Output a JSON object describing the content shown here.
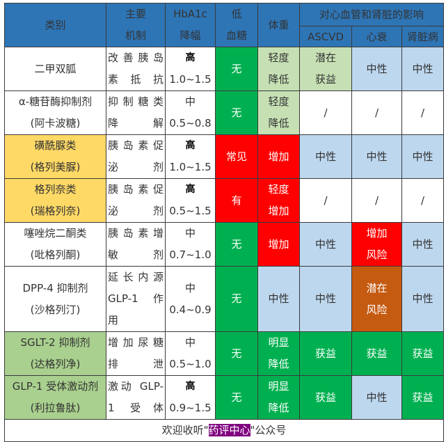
{
  "header": {
    "category": "类别",
    "mechanism": [
      "主要",
      "机制"
    ],
    "hba1c": [
      "HbA1c",
      "降幅"
    ],
    "hypoglycemia": [
      "低",
      "血糖"
    ],
    "weight": "体重",
    "cv_renal_group": "对心血管和肾脏的影响",
    "ascvd": "ASCVD",
    "heart_failure": "心衰",
    "kidney": "肾脏病"
  },
  "rows": [
    {
      "category": [
        "二甲双胍"
      ],
      "category_color": "#ffffff",
      "mechanism": [
        "改善胰岛",
        "素抵抗"
      ],
      "hba1c_level": "高",
      "hba1c_range": "1.0~1.5",
      "hypo": {
        "text": [
          "无"
        ],
        "color": "#00b050"
      },
      "weight": {
        "text": [
          "轻度",
          "降低"
        ],
        "color": "#c6e0b4"
      },
      "ascvd": {
        "text": [
          "潜在",
          "获益"
        ],
        "color": "#c6e0b4"
      },
      "hf": {
        "text": [
          "中性"
        ],
        "color": "#bdd7ee"
      },
      "kidney": {
        "text": [
          "中性"
        ],
        "color": "#bdd7ee"
      }
    },
    {
      "category": [
        "α-糖苷酶抑制剂",
        "(阿卡波糖)"
      ],
      "category_color": "#ffffff",
      "mechanism": [
        "抑制糖类",
        "降解"
      ],
      "hba1c_level": "中",
      "hba1c_range": "0.5~0.8",
      "hypo": {
        "text": [
          "无"
        ],
        "color": "#00b050"
      },
      "weight": {
        "text": [
          "轻度",
          "降低"
        ],
        "color": "#c6e0b4"
      },
      "ascvd": {
        "text": [
          "/"
        ],
        "color": "#ffffff"
      },
      "hf": {
        "text": [
          "/"
        ],
        "color": "#ffffff"
      },
      "kidney": {
        "text": [
          "/"
        ],
        "color": "#ffffff"
      }
    },
    {
      "category": [
        "磺酰脲类",
        "(格列美脲)"
      ],
      "category_color": "#ffd966",
      "mechanism": [
        "胰岛素促",
        "泌剂"
      ],
      "hba1c_level": "高",
      "hba1c_range": "1.0~1.5",
      "hypo": {
        "text": [
          "常见"
        ],
        "color": "#ff0000"
      },
      "weight": {
        "text": [
          "增加"
        ],
        "color": "#ff0000"
      },
      "ascvd": {
        "text": [
          "中性"
        ],
        "color": "#bdd7ee"
      },
      "hf": {
        "text": [
          "中性"
        ],
        "color": "#bdd7ee"
      },
      "kidney": {
        "text": [
          "中性"
        ],
        "color": "#bdd7ee"
      }
    },
    {
      "category": [
        "格列奈类",
        "(瑞格列奈)"
      ],
      "category_color": "#ffd966",
      "mechanism": [
        "胰岛素促",
        "泌剂"
      ],
      "hba1c_level": "高",
      "hba1c_range": "0.5~1.5",
      "hypo": {
        "text": [
          "有"
        ],
        "color": "#ff0000"
      },
      "weight": {
        "text": [
          "轻度",
          "增加"
        ],
        "color": "#ff0000"
      },
      "ascvd": {
        "text": [
          "/"
        ],
        "color": "#ffffff"
      },
      "hf": {
        "text": [
          "/"
        ],
        "color": "#ffffff"
      },
      "kidney": {
        "text": [
          "/"
        ],
        "color": "#ffffff"
      }
    },
    {
      "category": [
        "噻唑烷二酮类",
        "(吡格列酮)"
      ],
      "category_color": "#ffffff",
      "mechanism": [
        "胰岛素增",
        "敏剂"
      ],
      "hba1c_level": "中",
      "hba1c_range": "0.7~1.0",
      "hypo": {
        "text": [
          "无"
        ],
        "color": "#00b050"
      },
      "weight": {
        "text": [
          "增加"
        ],
        "color": "#ff0000"
      },
      "ascvd": {
        "text": [
          "中性"
        ],
        "color": "#bdd7ee"
      },
      "hf": {
        "text": [
          "增加",
          "风险"
        ],
        "color": "#ff0000"
      },
      "kidney": {
        "text": [
          "中性"
        ],
        "color": "#bdd7ee"
      }
    },
    {
      "category": [
        "DPP-4 抑制剂",
        "(沙格列汀)"
      ],
      "category_color": "#ffffff",
      "mechanism": [
        "延长内源",
        "GLP-1 作",
        "用"
      ],
      "hba1c_level": "中",
      "hba1c_range": "0.4~0.9",
      "hypo": {
        "text": [
          "无"
        ],
        "color": "#00b050"
      },
      "weight": {
        "text": [
          "中性"
        ],
        "color": "#bdd7ee"
      },
      "ascvd": {
        "text": [
          "中性"
        ],
        "color": "#bdd7ee"
      },
      "hf": {
        "text": [
          "潜在",
          "风险"
        ],
        "color": "#c55a11"
      },
      "kidney": {
        "text": [
          "中性"
        ],
        "color": "#bdd7ee"
      }
    },
    {
      "category": [
        "SGLT-2 抑制剂",
        "(达格列净)"
      ],
      "category_color": "#a9d08e",
      "mechanism": [
        "增加尿糖",
        "排泄"
      ],
      "hba1c_level": "中",
      "hba1c_range": "0.5~1.0",
      "hypo": {
        "text": [
          "无"
        ],
        "color": "#00b050"
      },
      "weight": {
        "text": [
          "明显",
          "降低"
        ],
        "color": "#00b050"
      },
      "ascvd": {
        "text": [
          "获益"
        ],
        "color": "#00b050"
      },
      "hf": {
        "text": [
          "获益"
        ],
        "color": "#00b050"
      },
      "kidney": {
        "text": [
          "获益"
        ],
        "color": "#00b050"
      }
    },
    {
      "category": [
        "GLP-1 受体激动剂",
        "(利拉鲁肽)"
      ],
      "category_color": "#a9d08e",
      "mechanism": [
        "激动 GLP-",
        "1 受体"
      ],
      "hba1c_level": "高",
      "hba1c_range": "0.9~1.5",
      "hypo": {
        "text": [
          "无"
        ],
        "color": "#00b050"
      },
      "weight": {
        "text": [
          "明显",
          "降低"
        ],
        "color": "#00b050"
      },
      "ascvd": {
        "text": [
          "获益"
        ],
        "color": "#00b050"
      },
      "hf": {
        "text": [
          "中性"
        ],
        "color": "#bdd7ee"
      },
      "kidney": {
        "text": [
          "获益"
        ],
        "color": "#00b050"
      }
    }
  ],
  "footer": {
    "prefix": "欢迎收听\"",
    "highlight": "药评中心",
    "suffix": "\"公众号",
    "highlight_color": "#7f007f"
  },
  "colors": {
    "header_bg": "#2e75b6",
    "green": "#00b050",
    "red": "#ff0000",
    "pale_green": "#c6e0b4",
    "light_blue": "#bdd7ee",
    "brown": "#c55a11",
    "yellow": "#ffd966",
    "light_green": "#a9d08e"
  }
}
